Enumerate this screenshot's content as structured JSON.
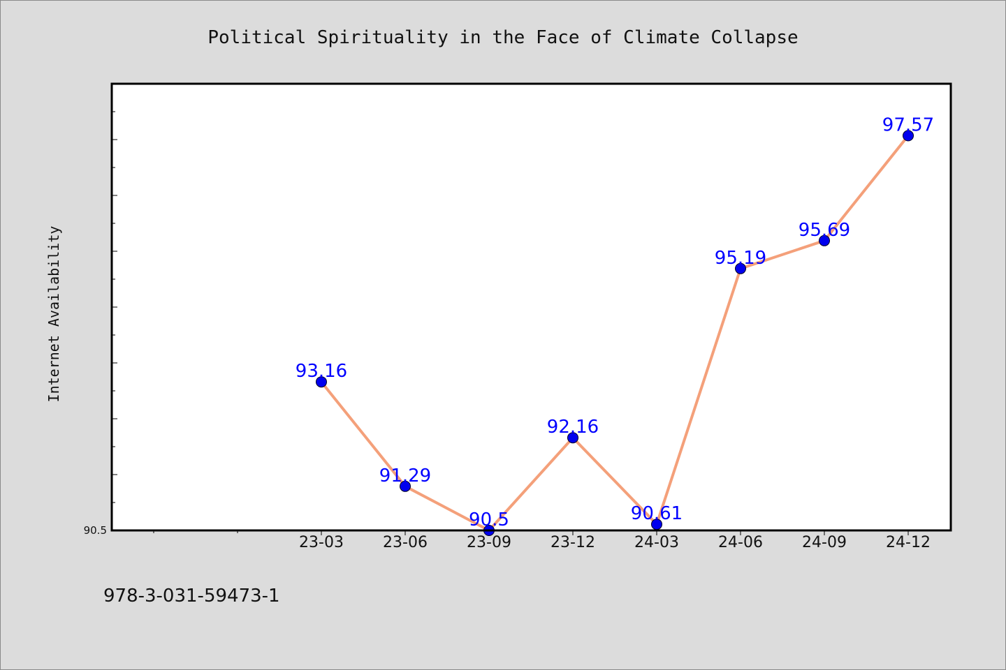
{
  "footer_text": "978-3-031-59473-1",
  "chart_data": {
    "type": "line",
    "title": "Political Spirituality in the Face of Climate Collapse",
    "xlabel": "",
    "ylabel": "Internet Availability",
    "categories": [
      "23-03",
      "23-06",
      "23-09",
      "23-12",
      "24-03",
      "24-06",
      "24-09",
      "24-12"
    ],
    "series": [
      {
        "values": [
          93.16,
          91.29,
          90.5,
          92.16,
          90.61,
          95.19,
          95.69,
          97.57
        ],
        "labels": [
          "93.16",
          "91.29",
          "90.5",
          "92.16",
          "90.61",
          "95.19",
          "95.69",
          "97.57"
        ]
      }
    ],
    "ylim": [
      90.5,
      98.5
    ],
    "y_tick_labels": [
      "90.5"
    ],
    "line_color": "#f4a07a",
    "marker_color": "#0000ee",
    "label_color": "#0000ff",
    "grid": false,
    "legend": "none"
  }
}
